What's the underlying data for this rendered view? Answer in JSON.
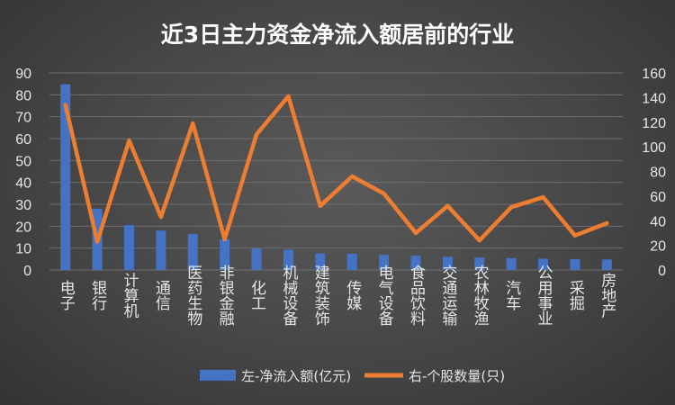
{
  "chart_data": {
    "type": "bar+line",
    "title": "近3日主力资金净流入额居前的行业",
    "categories": [
      "电子",
      "银行",
      "计算机",
      "通信",
      "医药生物",
      "非银金融",
      "化工",
      "机械设备",
      "建筑装饰",
      "传媒",
      "电气设备",
      "食品饮料",
      "交通运输",
      "农林牧渔",
      "汽车",
      "公用事业",
      "采掘",
      "房地产"
    ],
    "series": [
      {
        "name": "左-净流入额(亿元)",
        "type": "bar",
        "axis": "left",
        "color": "#4472C4",
        "values": [
          84.8,
          28.0,
          20.5,
          18.0,
          16.5,
          14.0,
          9.8,
          9.3,
          7.6,
          7.4,
          6.9,
          6.5,
          6.0,
          5.7,
          5.4,
          5.2,
          5.0,
          4.8
        ]
      },
      {
        "name": "右-个股数量(只)",
        "type": "line",
        "axis": "right",
        "color": "#ED7D31",
        "values": [
          134,
          23,
          105,
          43,
          119,
          25,
          110,
          141,
          52,
          76,
          62,
          30,
          52,
          24,
          51,
          59,
          28,
          38
        ]
      }
    ],
    "y_left": {
      "ylim": [
        0,
        90
      ],
      "ticks": [
        0,
        10,
        20,
        30,
        40,
        50,
        60,
        70,
        80,
        90
      ]
    },
    "y_right": {
      "ylim": [
        0,
        160
      ],
      "ticks": [
        0,
        20,
        40,
        60,
        80,
        100,
        120,
        140,
        160
      ]
    },
    "grid": true,
    "legend": "bottom"
  }
}
